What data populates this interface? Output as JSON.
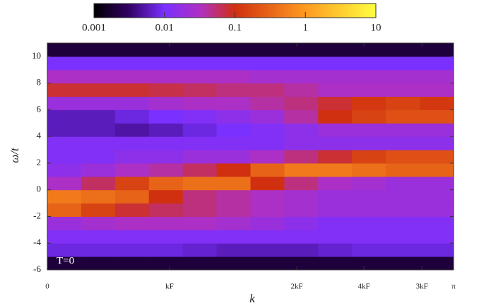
{
  "chart_data": {
    "type": "heatmap",
    "xlabel": "k",
    "ylabel": "ω/t",
    "annotation": "T=0",
    "xlim": [
      0,
      3.1416
    ],
    "xticks": [
      {
        "value": 0,
        "label": "0"
      },
      {
        "value": 0.945,
        "label": "kF"
      },
      {
        "value": 1.929,
        "label": "2kF"
      },
      {
        "value": 2.448,
        "label": "4kF"
      },
      {
        "value": 2.897,
        "label": "3kF"
      },
      {
        "value": 3.1416,
        "label": "π"
      }
    ],
    "ylim": [
      -6,
      11
    ],
    "yticks": [
      -6,
      -4,
      -2,
      0,
      2,
      4,
      6,
      8,
      10
    ],
    "xbins": [
      0,
      0.2618,
      0.5236,
      0.7854,
      1.0472,
      1.309,
      1.5708,
      1.8326,
      2.0944,
      2.3562,
      2.618,
      2.8798,
      3.1416
    ],
    "ybins": [
      -6,
      -5,
      -4,
      -3,
      -2,
      -1,
      0,
      1,
      2,
      3,
      4,
      5,
      6,
      7,
      8,
      9,
      10,
      11
    ],
    "z": [
      [
        0.002,
        0.002,
        0.002,
        0.002,
        0.002,
        0.002,
        0.002,
        0.002,
        0.002,
        0.002,
        0.002,
        0.002
      ],
      [
        0.008,
        0.008,
        0.008,
        0.008,
        0.007,
        0.006,
        0.006,
        0.006,
        0.007,
        0.008,
        0.008,
        0.008
      ],
      [
        0.012,
        0.012,
        0.012,
        0.012,
        0.012,
        0.012,
        0.012,
        0.012,
        0.012,
        0.012,
        0.012,
        0.012
      ],
      [
        0.02,
        0.025,
        0.03,
        0.03,
        0.03,
        0.025,
        0.02,
        0.015,
        0.012,
        0.012,
        0.012,
        0.012
      ],
      [
        0.3,
        0.15,
        0.08,
        0.06,
        0.05,
        0.04,
        0.03,
        0.025,
        0.02,
        0.02,
        0.02,
        0.02
      ],
      [
        0.5,
        0.4,
        0.3,
        0.1,
        0.05,
        0.04,
        0.03,
        0.025,
        0.02,
        0.02,
        0.02,
        0.02
      ],
      [
        0.03,
        0.06,
        0.15,
        0.3,
        0.4,
        0.4,
        0.1,
        0.05,
        0.03,
        0.025,
        0.02,
        0.02
      ],
      [
        0.015,
        0.02,
        0.03,
        0.04,
        0.06,
        0.1,
        0.3,
        0.5,
        0.5,
        0.4,
        0.3,
        0.3
      ],
      [
        0.012,
        0.012,
        0.015,
        0.015,
        0.02,
        0.02,
        0.03,
        0.05,
        0.08,
        0.15,
        0.2,
        0.2
      ],
      [
        0.012,
        0.012,
        0.012,
        0.012,
        0.012,
        0.012,
        0.012,
        0.015,
        0.015,
        0.015,
        0.015,
        0.015
      ],
      [
        0.006,
        0.006,
        0.005,
        0.006,
        0.008,
        0.01,
        0.012,
        0.015,
        0.02,
        0.02,
        0.02,
        0.02
      ],
      [
        0.006,
        0.006,
        0.008,
        0.01,
        0.012,
        0.015,
        0.02,
        0.04,
        0.1,
        0.15,
        0.2,
        0.2
      ],
      [
        0.02,
        0.02,
        0.02,
        0.025,
        0.03,
        0.03,
        0.04,
        0.05,
        0.08,
        0.12,
        0.15,
        0.12
      ],
      [
        0.08,
        0.08,
        0.08,
        0.07,
        0.06,
        0.05,
        0.05,
        0.04,
        0.03,
        0.03,
        0.03,
        0.03
      ],
      [
        0.03,
        0.03,
        0.03,
        0.03,
        0.03,
        0.03,
        0.025,
        0.025,
        0.025,
        0.025,
        0.025,
        0.025
      ],
      [
        0.01,
        0.01,
        0.01,
        0.01,
        0.01,
        0.01,
        0.01,
        0.01,
        0.01,
        0.01,
        0.01,
        0.01
      ],
      [
        0.002,
        0.002,
        0.002,
        0.002,
        0.002,
        0.002,
        0.002,
        0.002,
        0.002,
        0.002,
        0.002,
        0.002
      ]
    ],
    "colorbar": {
      "lim": [
        0.001,
        10
      ],
      "ticks": [
        0.001,
        0.01,
        0.1,
        1,
        10
      ],
      "log": true
    }
  }
}
